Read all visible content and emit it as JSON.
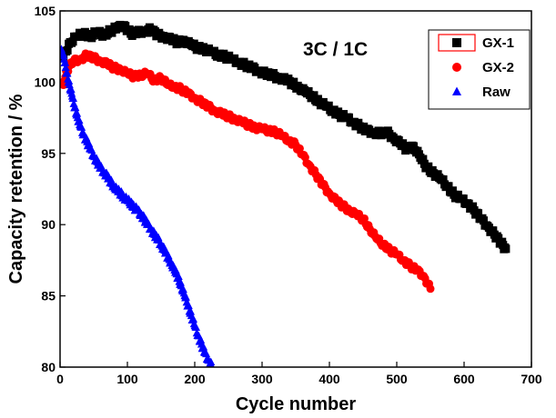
{
  "chart_data": {
    "type": "scatter",
    "xlabel": "Cycle number",
    "ylabel": "Capacity retention / %",
    "annotation": "3C / 1C",
    "xlim": [
      0,
      700
    ],
    "ylim": [
      80,
      105
    ],
    "xticks": [
      0,
      100,
      200,
      300,
      400,
      500,
      600,
      700
    ],
    "yticks": [
      80,
      85,
      90,
      95,
      100,
      105
    ],
    "legend_position": "top-right",
    "series": [
      {
        "name": "GX-1",
        "marker": "square",
        "color": "#000000",
        "points": [
          [
            5,
            101.8
          ],
          [
            15,
            102.8
          ],
          [
            25,
            103.2
          ],
          [
            35,
            103.4
          ],
          [
            45,
            103.2
          ],
          [
            55,
            103.5
          ],
          [
            65,
            103.3
          ],
          [
            75,
            103.6
          ],
          [
            85,
            103.8
          ],
          [
            95,
            104.0
          ],
          [
            105,
            103.4
          ],
          [
            115,
            103.5
          ],
          [
            125,
            103.6
          ],
          [
            135,
            103.7
          ],
          [
            145,
            103.3
          ],
          [
            155,
            103.2
          ],
          [
            165,
            103.0
          ],
          [
            175,
            102.8
          ],
          [
            185,
            102.9
          ],
          [
            195,
            102.6
          ],
          [
            205,
            102.4
          ],
          [
            215,
            102.3
          ],
          [
            225,
            102.1
          ],
          [
            235,
            101.9
          ],
          [
            245,
            101.8
          ],
          [
            255,
            101.6
          ],
          [
            265,
            101.4
          ],
          [
            275,
            101.2
          ],
          [
            285,
            101.0
          ],
          [
            295,
            100.8
          ],
          [
            305,
            100.6
          ],
          [
            315,
            100.5
          ],
          [
            325,
            100.3
          ],
          [
            335,
            100.2
          ],
          [
            345,
            99.9
          ],
          [
            355,
            99.6
          ],
          [
            365,
            99.3
          ],
          [
            375,
            99.0
          ],
          [
            385,
            98.6
          ],
          [
            395,
            98.3
          ],
          [
            405,
            98.0
          ],
          [
            415,
            97.7
          ],
          [
            425,
            97.5
          ],
          [
            435,
            97.2
          ],
          [
            445,
            96.9
          ],
          [
            455,
            96.6
          ],
          [
            465,
            96.5
          ],
          [
            475,
            96.4
          ],
          [
            485,
            96.5
          ],
          [
            495,
            96.1
          ],
          [
            505,
            95.7
          ],
          [
            515,
            95.3
          ],
          [
            525,
            95.5
          ],
          [
            535,
            94.7
          ],
          [
            545,
            94.0
          ],
          [
            555,
            93.6
          ],
          [
            565,
            93.2
          ],
          [
            575,
            92.7
          ],
          [
            585,
            92.1
          ],
          [
            595,
            91.8
          ],
          [
            605,
            91.5
          ],
          [
            615,
            91.0
          ],
          [
            625,
            90.4
          ],
          [
            635,
            89.9
          ],
          [
            645,
            89.3
          ],
          [
            655,
            88.7
          ],
          [
            662,
            88.3
          ]
        ]
      },
      {
        "name": "GX-2",
        "marker": "circle",
        "color": "#ff0000",
        "points": [
          [
            5,
            99.8
          ],
          [
            10,
            100.8
          ],
          [
            20,
            101.5
          ],
          [
            30,
            101.6
          ],
          [
            40,
            101.9
          ],
          [
            50,
            101.7
          ],
          [
            60,
            101.5
          ],
          [
            70,
            101.3
          ],
          [
            80,
            101.0
          ],
          [
            90,
            100.9
          ],
          [
            100,
            100.6
          ],
          [
            110,
            100.4
          ],
          [
            120,
            100.5
          ],
          [
            130,
            100.6
          ],
          [
            140,
            100.1
          ],
          [
            150,
            100.3
          ],
          [
            160,
            99.8
          ],
          [
            170,
            99.7
          ],
          [
            180,
            99.5
          ],
          [
            190,
            99.2
          ],
          [
            200,
            98.9
          ],
          [
            210,
            98.6
          ],
          [
            220,
            98.3
          ],
          [
            230,
            98.0
          ],
          [
            240,
            97.8
          ],
          [
            250,
            97.6
          ],
          [
            260,
            97.4
          ],
          [
            270,
            97.2
          ],
          [
            280,
            97.0
          ],
          [
            290,
            96.8
          ],
          [
            300,
            96.7
          ],
          [
            310,
            96.6
          ],
          [
            320,
            96.5
          ],
          [
            330,
            96.2
          ],
          [
            340,
            95.9
          ],
          [
            350,
            95.6
          ],
          [
            360,
            94.9
          ],
          [
            370,
            94.2
          ],
          [
            380,
            93.5
          ],
          [
            390,
            92.8
          ],
          [
            400,
            92.2
          ],
          [
            410,
            91.7
          ],
          [
            420,
            91.3
          ],
          [
            430,
            91.0
          ],
          [
            440,
            90.7
          ],
          [
            450,
            90.4
          ],
          [
            460,
            89.7
          ],
          [
            470,
            89.0
          ],
          [
            480,
            88.6
          ],
          [
            490,
            88.2
          ],
          [
            500,
            87.9
          ],
          [
            510,
            87.5
          ],
          [
            520,
            87.1
          ],
          [
            530,
            86.8
          ],
          [
            540,
            86.4
          ],
          [
            550,
            85.5
          ]
        ]
      },
      {
        "name": "Raw",
        "marker": "triangle",
        "color": "#0000ff",
        "points": [
          [
            2,
            102.3
          ],
          [
            6,
            101.6
          ],
          [
            10,
            100.6
          ],
          [
            14,
            99.8
          ],
          [
            18,
            99.0
          ],
          [
            22,
            98.2
          ],
          [
            26,
            97.5
          ],
          [
            30,
            96.9
          ],
          [
            35,
            96.3
          ],
          [
            40,
            95.8
          ],
          [
            45,
            95.3
          ],
          [
            50,
            94.8
          ],
          [
            55,
            94.4
          ],
          [
            60,
            94.0
          ],
          [
            65,
            93.7
          ],
          [
            70,
            93.4
          ],
          [
            75,
            93.0
          ],
          [
            80,
            92.7
          ],
          [
            85,
            92.4
          ],
          [
            90,
            92.2
          ],
          [
            95,
            91.9
          ],
          [
            100,
            91.7
          ],
          [
            105,
            91.5
          ],
          [
            110,
            91.2
          ],
          [
            115,
            91.0
          ],
          [
            120,
            90.7
          ],
          [
            125,
            90.4
          ],
          [
            130,
            90.0
          ],
          [
            135,
            89.7
          ],
          [
            140,
            89.3
          ],
          [
            145,
            89.0
          ],
          [
            150,
            88.6
          ],
          [
            155,
            88.2
          ],
          [
            160,
            87.7
          ],
          [
            165,
            87.3
          ],
          [
            170,
            86.8
          ],
          [
            175,
            86.3
          ],
          [
            180,
            85.7
          ],
          [
            185,
            85.0
          ],
          [
            190,
            84.3
          ],
          [
            195,
            83.6
          ],
          [
            200,
            82.9
          ],
          [
            205,
            82.2
          ],
          [
            210,
            81.6
          ],
          [
            215,
            81.0
          ],
          [
            220,
            80.5
          ],
          [
            225,
            80.1
          ]
        ]
      }
    ]
  }
}
